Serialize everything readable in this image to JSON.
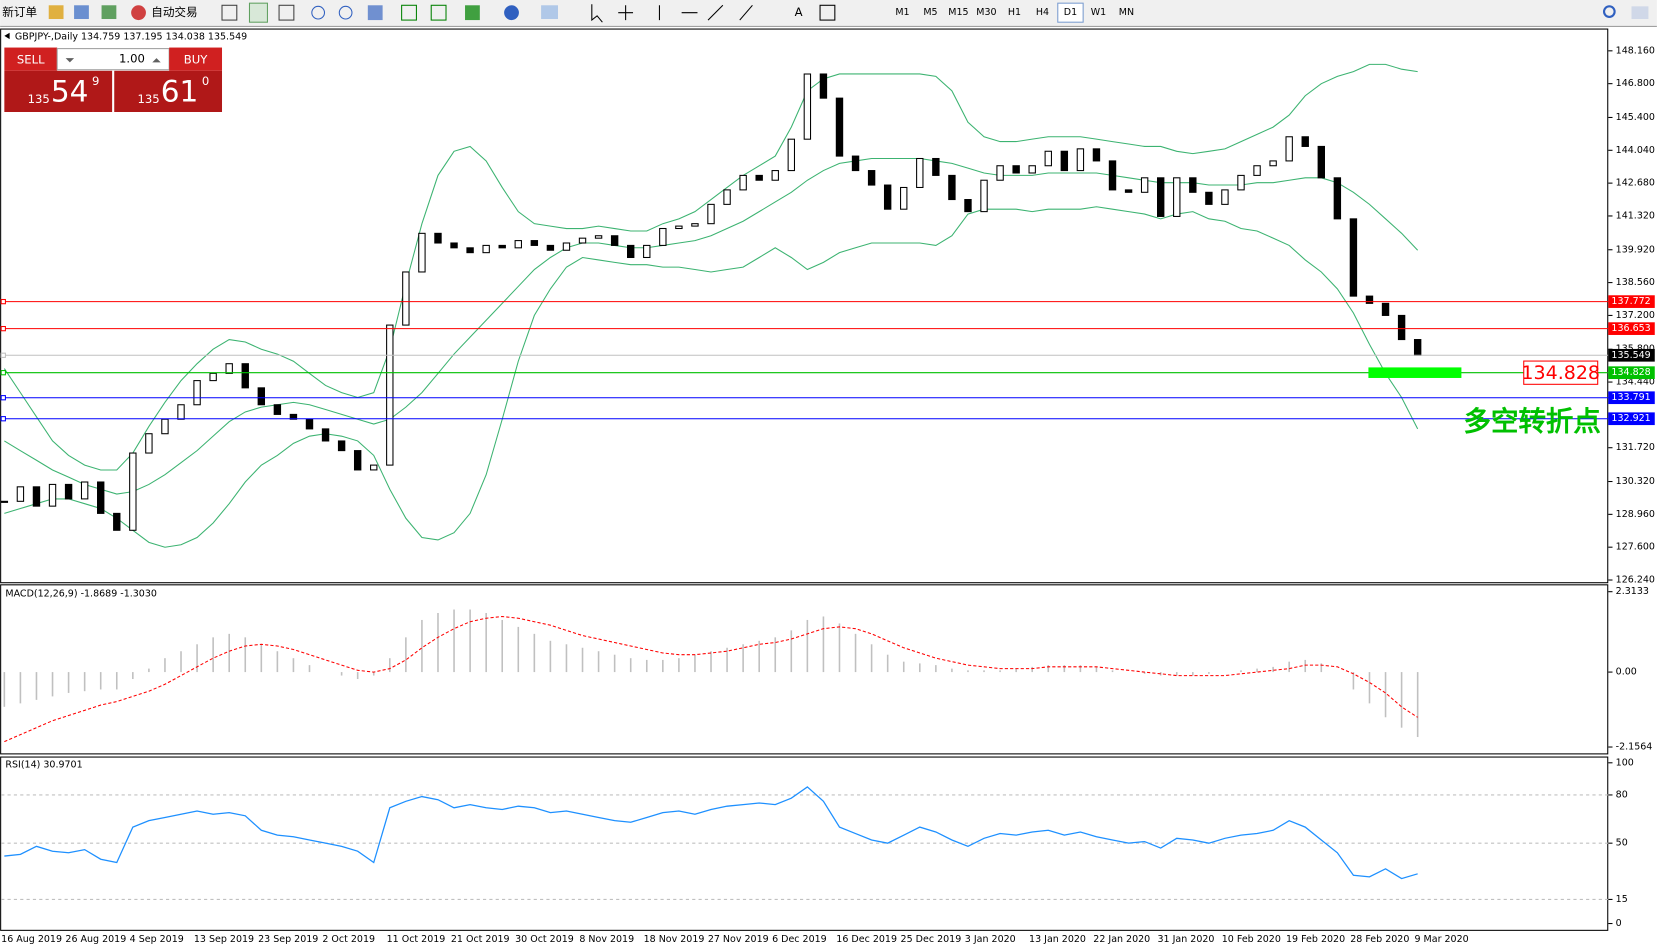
{
  "toolbar": {
    "new_order": "新订单",
    "auto_trading": "自动交易",
    "timeframes": [
      "M1",
      "M5",
      "M15",
      "M30",
      "H1",
      "H4",
      "D1",
      "W1",
      "MN"
    ],
    "active": "D1"
  },
  "trade_panel": {
    "sell": "SELL",
    "buy": "BUY",
    "lots": "1.00",
    "sell_price": {
      "big": "135",
      "pips": "54",
      "point": "9"
    },
    "buy_price": {
      "big": "135",
      "pips": "61",
      "point": "0"
    }
  },
  "chart_data": [
    {
      "type": "candlestick",
      "title": "GBPJPY-,Daily 134.759 137.195 134.038 135.549",
      "x": [
        "16 Aug 2019",
        null,
        null,
        null,
        "26 Aug 2019",
        null,
        null,
        null,
        "4 Sep 2019",
        null,
        null,
        null,
        "13 Sep 2019",
        null,
        null,
        null,
        "23 Sep 2019",
        null,
        null,
        null,
        "2 Oct 2019",
        null,
        null,
        null,
        "11 Oct 2019",
        null,
        null,
        null,
        "21 Oct 2019",
        null,
        null,
        null,
        "30 Oct 2019",
        null,
        null,
        null,
        "8 Nov 2019",
        null,
        null,
        null,
        "18 Nov 2019",
        null,
        null,
        null,
        "27 Nov 2019",
        null,
        null,
        null,
        "6 Dec 2019",
        null,
        null,
        null,
        "16 Dec 2019",
        null,
        null,
        null,
        "25 Dec 2019",
        null,
        null,
        null,
        "3 Jan 2020",
        null,
        null,
        null,
        "13 Jan 2020",
        null,
        null,
        null,
        "22 Jan 2020",
        null,
        null,
        null,
        "31 Jan 2020",
        null,
        null,
        null,
        "10 Feb 2020",
        null,
        null,
        null,
        "19 Feb 2020",
        null,
        null,
        null,
        "28 Feb 2020",
        null,
        null,
        null,
        "9 Mar 2020"
      ],
      "values": [
        129.5,
        130.1,
        129.3,
        130.2,
        129.6,
        130.3,
        129.0,
        128.3,
        131.5,
        132.3,
        132.9,
        133.5,
        134.5,
        134.8,
        135.2,
        134.2,
        133.5,
        133.1,
        132.9,
        132.5,
        132.0,
        131.6,
        130.8,
        131.0,
        136.8,
        139.0,
        140.6,
        140.2,
        140.0,
        139.8,
        140.1,
        140.0,
        140.3,
        140.1,
        139.9,
        140.2,
        140.4,
        140.5,
        140.1,
        139.6,
        140.1,
        140.8,
        140.9,
        141.0,
        141.8,
        142.4,
        143.0,
        142.8,
        143.2,
        144.5,
        147.2,
        146.2,
        143.8,
        143.2,
        142.6,
        141.6,
        142.5,
        143.7,
        143.0,
        142.0,
        141.5,
        142.8,
        143.4,
        143.1,
        143.4,
        144.0,
        143.2,
        144.1,
        143.6,
        142.4,
        142.3,
        142.9,
        141.3,
        142.9,
        142.3,
        141.8,
        142.4,
        143.0,
        143.4,
        143.6,
        144.6,
        144.2,
        142.9,
        141.2,
        138.0,
        137.7,
        137.2,
        136.2,
        135.549
      ],
      "bands": [
        {
          "color": "#3cb371",
          "values": [
            135.0,
            134.0,
            133.0,
            132.0,
            131.4,
            131.0,
            130.8,
            130.8,
            131.5,
            132.6,
            133.6,
            134.5,
            135.2,
            135.8,
            136.2,
            136.1,
            135.8,
            135.6,
            135.3,
            134.8,
            134.3,
            134.0,
            133.8,
            134.0,
            135.8,
            138.5,
            141.0,
            143.0,
            144.0,
            144.2,
            143.6,
            142.5,
            141.5,
            141.0,
            140.9,
            140.8,
            140.8,
            140.9,
            140.8,
            140.7,
            140.7,
            141.0,
            141.2,
            141.5,
            142.0,
            142.5,
            143.0,
            143.4,
            143.8,
            145.0,
            146.5,
            147.0,
            147.2,
            147.2,
            147.2,
            147.2,
            147.2,
            147.2,
            147.1,
            146.5,
            145.2,
            144.6,
            144.4,
            144.4,
            144.5,
            144.6,
            144.6,
            144.6,
            144.5,
            144.4,
            144.3,
            144.2,
            144.2,
            144.0,
            143.9,
            144.0,
            144.1,
            144.4,
            144.7,
            145.0,
            145.5,
            146.3,
            146.8,
            147.1,
            147.3,
            147.6,
            147.6,
            147.4,
            147.3
          ]
        },
        {
          "color": "#3cb371",
          "values": [
            132.0,
            131.6,
            131.2,
            130.8,
            130.5,
            130.2,
            130.0,
            129.8,
            129.9,
            130.2,
            130.6,
            131.1,
            131.6,
            132.2,
            132.8,
            133.2,
            133.4,
            133.5,
            133.6,
            133.5,
            133.3,
            133.1,
            132.9,
            132.7,
            132.9,
            133.4,
            134.0,
            134.8,
            135.6,
            136.3,
            137.0,
            137.7,
            138.4,
            139.1,
            139.6,
            140.0,
            140.2,
            140.2,
            140.1,
            140.0,
            140.0,
            140.1,
            140.2,
            140.3,
            140.5,
            140.8,
            141.1,
            141.5,
            141.9,
            142.3,
            142.8,
            143.2,
            143.5,
            143.6,
            143.7,
            143.7,
            143.7,
            143.7,
            143.6,
            143.5,
            143.3,
            143.1,
            143.0,
            143.0,
            143.0,
            143.1,
            143.1,
            143.1,
            143.1,
            143.0,
            142.9,
            142.8,
            142.7,
            142.7,
            142.7,
            142.6,
            142.6,
            142.6,
            142.7,
            142.7,
            142.8,
            142.9,
            142.9,
            142.7,
            142.3,
            141.8,
            141.2,
            140.6,
            139.9
          ]
        },
        {
          "color": "#3cb371",
          "values": [
            129.0,
            129.2,
            129.4,
            129.6,
            129.6,
            129.4,
            129.2,
            128.8,
            128.3,
            127.8,
            127.6,
            127.7,
            128.0,
            128.6,
            129.4,
            130.3,
            131.0,
            131.4,
            131.9,
            132.2,
            132.3,
            132.2,
            132.0,
            131.4,
            130.0,
            128.8,
            128.0,
            127.9,
            128.2,
            129.0,
            130.6,
            132.9,
            135.3,
            137.2,
            138.3,
            139.2,
            139.6,
            139.5,
            139.4,
            139.3,
            139.3,
            139.2,
            139.2,
            139.1,
            139.0,
            139.1,
            139.2,
            139.6,
            140.0,
            139.6,
            139.1,
            139.4,
            139.8,
            140.0,
            140.2,
            140.2,
            140.2,
            140.2,
            140.1,
            140.5,
            141.4,
            141.6,
            141.6,
            141.6,
            141.5,
            141.6,
            141.6,
            141.6,
            141.7,
            141.6,
            141.5,
            141.4,
            141.2,
            141.4,
            141.5,
            141.2,
            141.1,
            140.8,
            140.7,
            140.4,
            140.1,
            139.5,
            139.0,
            138.3,
            137.3,
            136.0,
            134.8,
            133.8,
            132.5
          ]
        }
      ],
      "ylim": [
        126.15,
        149.04
      ],
      "yticks": [
        {
          "value": 148.16,
          "label": "148.160"
        },
        {
          "value": 146.8,
          "label": "146.800"
        },
        {
          "value": 145.4,
          "label": "145.400"
        },
        {
          "value": 144.04,
          "label": "144.040"
        },
        {
          "value": 142.68,
          "label": "142.680"
        },
        {
          "value": 141.32,
          "label": "141.320"
        },
        {
          "value": 139.92,
          "label": "139.920"
        },
        {
          "value": 138.56,
          "label": "138.560"
        },
        {
          "value": 137.2,
          "label": "137.200"
        },
        {
          "value": 135.8,
          "label": "135.800"
        },
        {
          "value": 134.44,
          "label": "134.440"
        },
        {
          "value": 131.72,
          "label": "131.720"
        },
        {
          "value": 130.32,
          "label": "130.320"
        },
        {
          "value": 128.96,
          "label": "128.960"
        },
        {
          "value": 127.6,
          "label": "127.600"
        },
        {
          "value": 126.24,
          "label": "126.240"
        }
      ],
      "levels": [
        {
          "value": 137.772,
          "color": "#ff0000"
        },
        {
          "value": 136.653,
          "color": "#ff0000"
        },
        {
          "value": 135.549,
          "color": "#c0c0c0"
        },
        {
          "value": 134.828,
          "color": "#00c000"
        },
        {
          "value": 133.791,
          "color": "#0000ff"
        },
        {
          "value": 132.921,
          "color": "#0000ff"
        }
      ],
      "annotation": "多空转折点"
    },
    {
      "type": "macd",
      "title": "MACD(12,26,9) -1.8689 -1.3030",
      "values": [
        -1.0,
        -0.9,
        -0.8,
        -0.7,
        -0.6,
        -0.55,
        -0.5,
        -0.5,
        -0.2,
        0.1,
        0.4,
        0.6,
        0.8,
        1.0,
        1.1,
        1.0,
        0.8,
        0.6,
        0.4,
        0.2,
        0.0,
        -0.1,
        -0.2,
        -0.1,
        0.4,
        1.0,
        1.5,
        1.7,
        1.8,
        1.8,
        1.7,
        1.5,
        1.3,
        1.1,
        0.9,
        0.8,
        0.7,
        0.6,
        0.5,
        0.4,
        0.35,
        0.35,
        0.4,
        0.5,
        0.6,
        0.7,
        0.8,
        0.9,
        1.0,
        1.2,
        1.5,
        1.6,
        1.4,
        1.1,
        0.8,
        0.5,
        0.3,
        0.25,
        0.2,
        0.1,
        0.05,
        0.05,
        0.05,
        0.1,
        0.15,
        0.2,
        0.2,
        0.2,
        0.15,
        0.05,
        0.0,
        -0.05,
        -0.1,
        -0.1,
        -0.1,
        -0.05,
        0.0,
        0.05,
        0.1,
        0.15,
        0.3,
        0.35,
        0.25,
        0.0,
        -0.5,
        -0.9,
        -1.3,
        -1.6,
        -1.8689
      ],
      "signal": [
        -2.0,
        -1.8,
        -1.6,
        -1.4,
        -1.25,
        -1.1,
        -0.95,
        -0.85,
        -0.7,
        -0.55,
        -0.35,
        -0.1,
        0.15,
        0.4,
        0.6,
        0.75,
        0.8,
        0.75,
        0.65,
        0.5,
        0.35,
        0.2,
        0.05,
        0.0,
        0.1,
        0.35,
        0.7,
        1.0,
        1.25,
        1.45,
        1.55,
        1.6,
        1.55,
        1.45,
        1.35,
        1.2,
        1.05,
        0.95,
        0.85,
        0.75,
        0.65,
        0.55,
        0.5,
        0.5,
        0.55,
        0.6,
        0.7,
        0.8,
        0.85,
        0.95,
        1.1,
        1.25,
        1.3,
        1.25,
        1.1,
        0.9,
        0.7,
        0.55,
        0.4,
        0.3,
        0.2,
        0.15,
        0.1,
        0.1,
        0.1,
        0.15,
        0.15,
        0.15,
        0.15,
        0.1,
        0.05,
        0.0,
        -0.05,
        -0.1,
        -0.1,
        -0.1,
        -0.1,
        -0.05,
        0.0,
        0.05,
        0.1,
        0.2,
        0.2,
        0.15,
        -0.05,
        -0.3,
        -0.6,
        -1.0,
        -1.303
      ],
      "color": "#c0c0c0",
      "signal_color": "#ff0000",
      "ylim": [
        -2.339,
        2.526
      ],
      "yticks": [
        2.3133,
        {
          "value": 0,
          "label": "0.00"
        },
        -2.1564
      ]
    },
    {
      "type": "line",
      "title": "RSI(14) 30.9701",
      "values": [
        42,
        43,
        48,
        45,
        44,
        46,
        40,
        38,
        60,
        64,
        66,
        68,
        70,
        68,
        69,
        67,
        58,
        55,
        54,
        52,
        50,
        48,
        45,
        38,
        72,
        76,
        79,
        77,
        72,
        74,
        72,
        71,
        73,
        72,
        69,
        70,
        68,
        66,
        64,
        63,
        66,
        69,
        70,
        68,
        71,
        73,
        74,
        75,
        74,
        78,
        85,
        76,
        60,
        56,
        52,
        50,
        55,
        60,
        57,
        52,
        48,
        53,
        56,
        55,
        57,
        58,
        55,
        57,
        54,
        52,
        50,
        51,
        47,
        53,
        52,
        50,
        53,
        55,
        56,
        58,
        64,
        60,
        52,
        44,
        30,
        29,
        34,
        28,
        30.9701
      ],
      "color": "#1e90ff",
      "ylim": [
        -3.9,
        103.9
      ],
      "yticks": [
        100,
        80,
        50,
        15,
        0
      ]
    }
  ]
}
